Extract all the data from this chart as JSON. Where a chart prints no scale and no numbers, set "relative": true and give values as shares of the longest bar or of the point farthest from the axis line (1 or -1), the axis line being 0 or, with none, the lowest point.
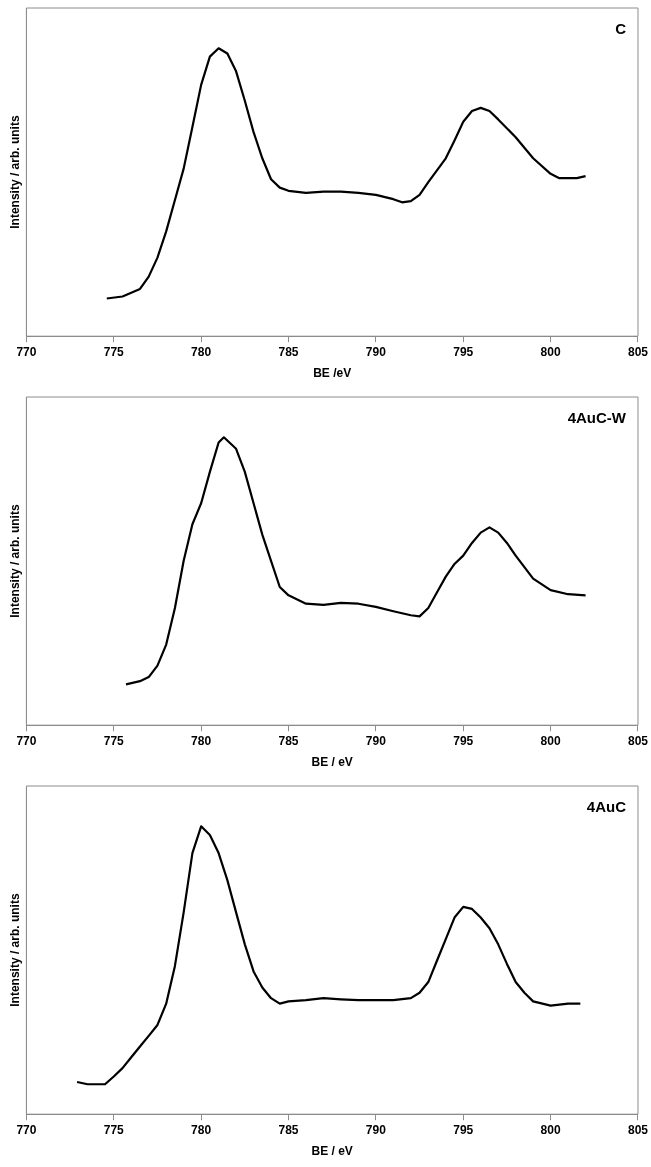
{
  "chart_data": [
    {
      "type": "line",
      "title": "C",
      "xlabel": "BE /eV",
      "ylabel": "Intensity / arb. units",
      "relative": true,
      "xlim": [
        770,
        805
      ],
      "xticks": [
        770,
        775,
        780,
        785,
        790,
        795,
        800,
        805
      ],
      "grid": false,
      "legend": false,
      "marker": "none",
      "line_style": "solid",
      "series": [
        {
          "color": "#000000",
          "x": [
            774.6,
            775.5,
            776.5,
            777,
            777.5,
            778,
            778.5,
            779,
            779.5,
            780,
            780.5,
            781,
            781.5,
            782,
            782.5,
            783,
            783.5,
            784,
            784.5,
            785,
            786,
            787,
            788,
            789,
            790,
            791,
            791.5,
            792,
            792.5,
            793,
            794,
            794.5,
            795,
            795.5,
            796,
            796.5,
            797,
            798,
            799,
            800,
            800.5,
            801,
            801.5,
            802
          ],
          "values": [
            0.131,
            0.138,
            0.164,
            0.207,
            0.273,
            0.364,
            0.473,
            0.582,
            0.727,
            0.873,
            0.971,
            1,
            0.982,
            0.92,
            0.818,
            0.709,
            0.618,
            0.545,
            0.516,
            0.505,
            0.498,
            0.502,
            0.502,
            0.498,
            0.491,
            0.476,
            0.465,
            0.469,
            0.491,
            0.535,
            0.618,
            0.68,
            0.745,
            0.782,
            0.793,
            0.782,
            0.753,
            0.691,
            0.618,
            0.564,
            0.549,
            0.549,
            0.549,
            0.556
          ]
        }
      ]
    },
    {
      "type": "line",
      "title": "4AuC-W",
      "xlabel": "BE / eV",
      "ylabel": "Intensity / arb. units",
      "relative": true,
      "xlim": [
        770,
        805
      ],
      "xticks": [
        770,
        775,
        780,
        785,
        790,
        795,
        800,
        805
      ],
      "grid": false,
      "legend": false,
      "marker": "none",
      "line_style": "solid",
      "series": [
        {
          "color": "#000000",
          "x": [
            775.7,
            776.5,
            777,
            777.5,
            778,
            778.5,
            779,
            779.5,
            780,
            780.5,
            781,
            781.3,
            782,
            782.5,
            783,
            783.5,
            784,
            784.5,
            785,
            786,
            787,
            788,
            789,
            790,
            791,
            792,
            792.5,
            793,
            793.5,
            794,
            794.5,
            795,
            795.5,
            796,
            796.5,
            797,
            797.5,
            798,
            799,
            800,
            801,
            802
          ],
          "values": [
            0.142,
            0.153,
            0.167,
            0.207,
            0.28,
            0.407,
            0.571,
            0.698,
            0.771,
            0.88,
            0.982,
            1,
            0.96,
            0.88,
            0.771,
            0.662,
            0.571,
            0.48,
            0.451,
            0.422,
            0.418,
            0.425,
            0.422,
            0.411,
            0.396,
            0.382,
            0.378,
            0.407,
            0.462,
            0.516,
            0.56,
            0.589,
            0.633,
            0.669,
            0.687,
            0.669,
            0.633,
            0.589,
            0.509,
            0.469,
            0.455,
            0.451
          ]
        }
      ]
    },
    {
      "type": "line",
      "title": "4AuC",
      "xlabel": "BE / eV",
      "ylabel": "Intensity / arb. units",
      "relative": true,
      "xlim": [
        770,
        805
      ],
      "xticks": [
        770,
        775,
        780,
        785,
        790,
        795,
        800,
        805
      ],
      "grid": false,
      "legend": false,
      "marker": "none",
      "line_style": "solid",
      "series": [
        {
          "color": "#000000",
          "x": [
            772.9,
            773.5,
            774.5,
            775,
            775.5,
            776,
            776.5,
            777,
            777.5,
            778,
            778.5,
            779,
            779.5,
            780,
            780.5,
            781,
            781.5,
            782,
            782.5,
            783,
            783.5,
            784,
            784.5,
            785,
            786,
            787,
            788,
            789,
            790,
            791,
            792,
            792.5,
            793,
            793.5,
            794,
            794.5,
            795,
            795.5,
            796,
            796.5,
            797,
            797.5,
            798,
            798.5,
            799,
            800,
            801,
            801.7
          ],
          "values": [
            0.112,
            0.104,
            0.104,
            0.131,
            0.16,
            0.198,
            0.235,
            0.272,
            0.31,
            0.384,
            0.515,
            0.701,
            0.907,
            1,
            0.97,
            0.907,
            0.813,
            0.701,
            0.59,
            0.496,
            0.44,
            0.403,
            0.384,
            0.392,
            0.396,
            0.403,
            0.399,
            0.396,
            0.396,
            0.396,
            0.403,
            0.422,
            0.459,
            0.534,
            0.608,
            0.683,
            0.72,
            0.713,
            0.683,
            0.646,
            0.59,
            0.522,
            0.459,
            0.422,
            0.392,
            0.377,
            0.384,
            0.384
          ]
        }
      ]
    }
  ]
}
